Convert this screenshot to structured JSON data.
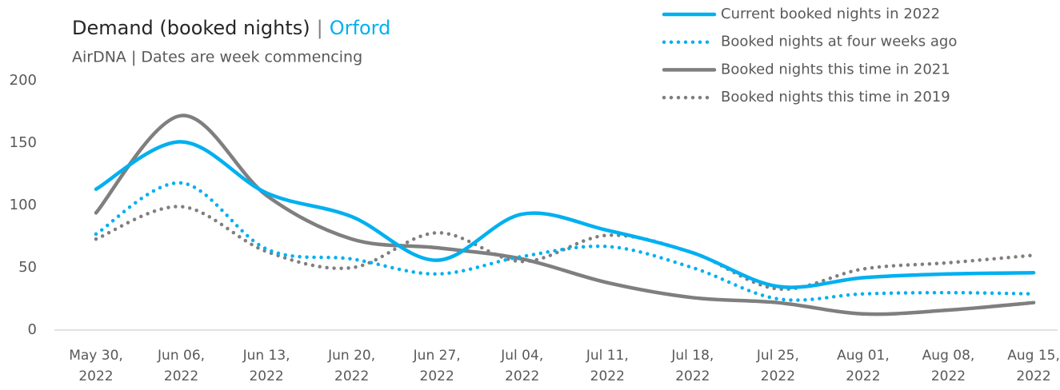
{
  "chart_data": {
    "type": "line",
    "title": "Demand (booked nights)",
    "title_separator": "|",
    "title_highlight": "Orford",
    "subtitle": "AirDNA | Dates are week commencing",
    "categories": [
      "May 30, 2022",
      "Jun 06, 2022",
      "Jun 13, 2022",
      "Jun 20, 2022",
      "Jun 27, 2022",
      "Jul 04, 2022",
      "Jul 11, 2022",
      "Jul 18, 2022",
      "Jul 25, 2022",
      "Aug 01, 2022",
      "Aug 08, 2022",
      "Aug 15, 2022"
    ],
    "series": [
      {
        "name": "Current booked nights in 2022",
        "color": "#00b0f0",
        "style": "solid",
        "values": [
          113,
          151,
          110,
          91,
          56,
          93,
          80,
          62,
          35,
          42,
          45,
          46
        ]
      },
      {
        "name": "Booked nights at four weeks ago",
        "color": "#00b0f0",
        "style": "dotted",
        "values": [
          77,
          118,
          65,
          57,
          45,
          59,
          67,
          50,
          25,
          29,
          30,
          29
        ]
      },
      {
        "name": "Booked nights this time in 2021",
        "color": "#7f7f7f",
        "style": "solid",
        "values": [
          94,
          172,
          108,
          73,
          66,
          57,
          38,
          26,
          22,
          13,
          16,
          22
        ]
      },
      {
        "name": "Booked nights this time in 2019",
        "color": "#7f7f7f",
        "style": "dotted",
        "values": [
          73,
          99,
          63,
          50,
          78,
          55,
          76,
          62,
          33,
          49,
          54,
          60
        ]
      }
    ],
    "ylim": [
      0,
      200
    ],
    "yticks": [
      0,
      50,
      100,
      150,
      200
    ],
    "grid": false
  }
}
